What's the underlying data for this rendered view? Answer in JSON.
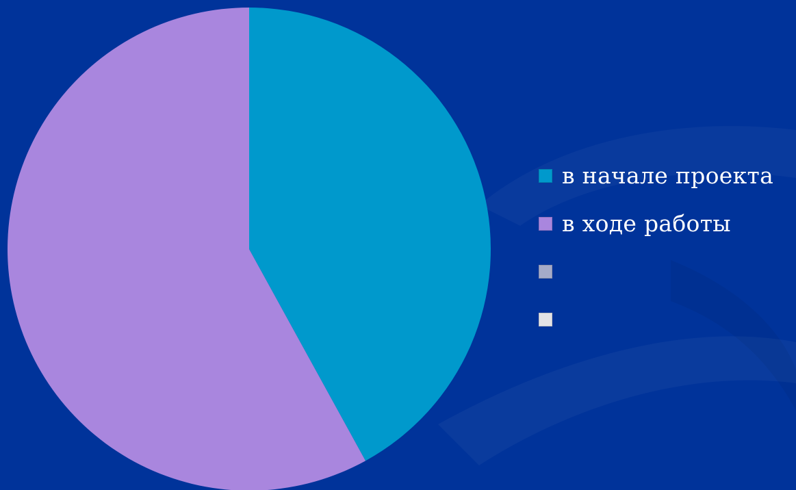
{
  "chart_data": {
    "type": "pie",
    "categories": [
      "в начале проекта",
      "в ходе работы",
      "",
      ""
    ],
    "values": [
      42,
      58,
      0,
      0
    ],
    "colors": [
      "#0099cc",
      "#a986de",
      "#a5abc9",
      "#e3e3e6"
    ],
    "legend_position": "right",
    "start_angle": "12 o'clock",
    "direction": "clockwise"
  },
  "background_color": "#00339a"
}
